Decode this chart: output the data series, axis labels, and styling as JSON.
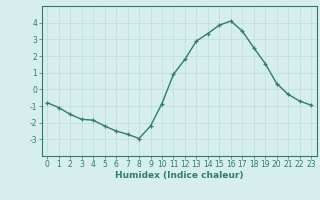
{
  "x": [
    0,
    1,
    2,
    3,
    4,
    5,
    6,
    7,
    8,
    9,
    10,
    11,
    12,
    13,
    14,
    15,
    16,
    17,
    18,
    19,
    20,
    21,
    22,
    23
  ],
  "y": [
    -0.8,
    -1.1,
    -1.5,
    -1.8,
    -1.85,
    -2.2,
    -2.5,
    -2.7,
    -2.95,
    -2.2,
    -0.85,
    0.9,
    1.8,
    2.9,
    3.35,
    3.85,
    4.1,
    3.5,
    2.5,
    1.55,
    0.35,
    -0.3,
    -0.7,
    -0.95
  ],
  "line_color": "#2e7d6e",
  "marker": "+",
  "marker_size": 3,
  "linewidth": 1.0,
  "bg_color": "#d6eeec",
  "grid_color": "#c0dbd8",
  "axis_color": "#2e7d6e",
  "tick_color": "#2e7d6e",
  "xlabel": "Humidex (Indice chaleur)",
  "xlabel_fontsize": 6.5,
  "ylim": [
    -4,
    5
  ],
  "xlim": [
    -0.5,
    23.5
  ],
  "yticks": [
    -3,
    -2,
    -1,
    0,
    1,
    2,
    3,
    4
  ],
  "xticks": [
    0,
    1,
    2,
    3,
    4,
    5,
    6,
    7,
    8,
    9,
    10,
    11,
    12,
    13,
    14,
    15,
    16,
    17,
    18,
    19,
    20,
    21,
    22,
    23
  ],
  "tick_fontsize": 5.5
}
